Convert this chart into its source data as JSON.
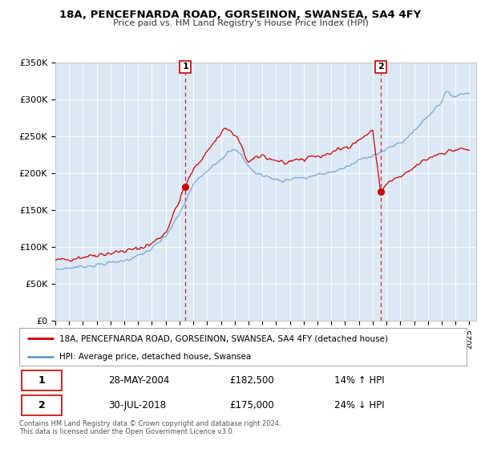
{
  "title": "18A, PENCEFNARDA ROAD, GORSEINON, SWANSEA, SA4 4FY",
  "subtitle": "Price paid vs. HM Land Registry's House Price Index (HPI)",
  "ylim": [
    0,
    350000
  ],
  "yticks": [
    0,
    50000,
    100000,
    150000,
    200000,
    250000,
    300000,
    350000
  ],
  "ytick_labels": [
    "£0",
    "£50K",
    "£100K",
    "£150K",
    "£200K",
    "£250K",
    "£300K",
    "£350K"
  ],
  "xlim_start": 1995.0,
  "xlim_end": 2025.5,
  "transaction1_x": 2004.42,
  "transaction1_y": 182500,
  "transaction2_x": 2018.58,
  "transaction2_y": 175000,
  "red_color": "#cc0000",
  "blue_color": "#6699cc",
  "plot_bg": "#dce9f5",
  "legend_label_red": "18A, PENCEFNARDA ROAD, GORSEINON, SWANSEA, SA4 4FY (detached house)",
  "legend_label_blue": "HPI: Average price, detached house, Swansea",
  "table_row1": [
    "1",
    "28-MAY-2004",
    "£182,500",
    "14% ↑ HPI"
  ],
  "table_row2": [
    "2",
    "30-JUL-2018",
    "£175,000",
    "24% ↓ HPI"
  ],
  "footer_line1": "Contains HM Land Registry data © Crown copyright and database right 2024.",
  "footer_line2": "This data is licensed under the Open Government Licence v3.0."
}
